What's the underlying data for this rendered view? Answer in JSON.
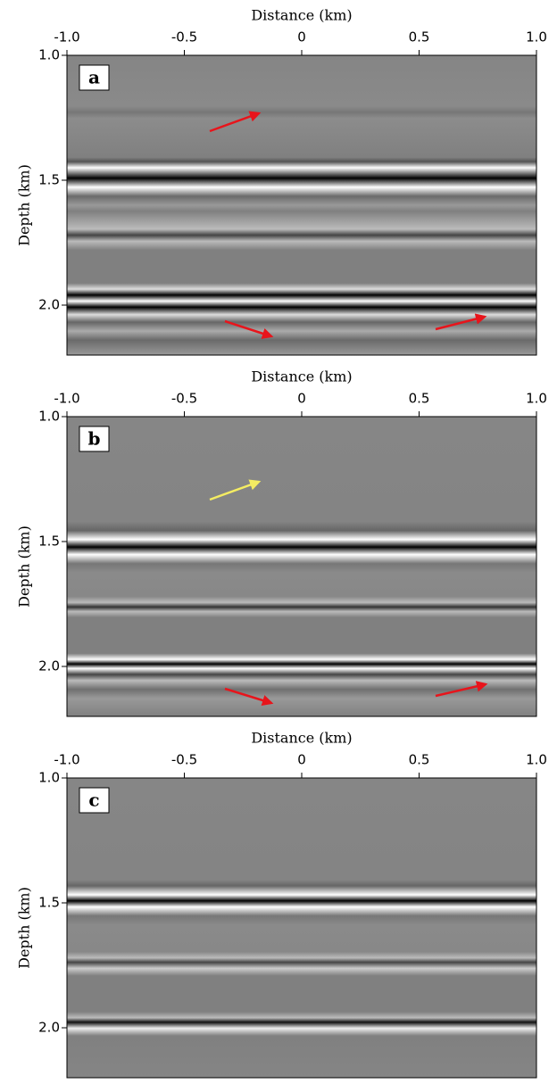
{
  "chart_data": [
    {
      "type": "image",
      "label": "a",
      "xlabel": "Distance (km)",
      "ylabel": "Depth (km)",
      "xlim": [
        -1.0,
        1.0
      ],
      "xticks": [
        {
          "value": -1.0,
          "label": "-1.0"
        },
        {
          "value": -0.5,
          "label": "-0.5"
        },
        0,
        0.5,
        {
          "value": 1.0,
          "label": "1.0"
        }
      ],
      "ylim": [
        1.0,
        2.2
      ],
      "yticks": [
        {
          "value": 1.0,
          "label": "1.0"
        },
        1.5,
        {
          "value": 2.0,
          "label": "2.0"
        }
      ]
    },
    {
      "type": "image",
      "label": "b",
      "xlabel": "Distance (km)",
      "ylabel": "Depth (km)",
      "xlim": [
        -1.0,
        1.0
      ],
      "xticks": [
        {
          "value": -1.0,
          "label": "-1.0"
        },
        {
          "value": -0.5,
          "label": "-0.5"
        },
        0,
        0.5,
        {
          "value": 1.0,
          "label": "1.0"
        }
      ],
      "ylim": [
        1.0,
        2.2
      ],
      "yticks": [
        {
          "value": 1.0,
          "label": "1.0"
        },
        1.5,
        {
          "value": 2.0,
          "label": "2.0"
        }
      ]
    },
    {
      "type": "image",
      "label": "c",
      "xlabel": "Distance (km)",
      "ylabel": "Depth (km)",
      "xlim": [
        -1.0,
        1.0
      ],
      "xticks": [
        {
          "value": -1.0,
          "label": "-1.0"
        },
        {
          "value": -0.5,
          "label": "-0.5"
        },
        0,
        0.5,
        {
          "value": 1.0,
          "label": "1.0"
        }
      ],
      "ylim": [
        1.0,
        2.2
      ],
      "yticks": [
        {
          "value": 1.0,
          "label": "1.0"
        },
        1.5,
        {
          "value": 2.0,
          "label": "2.0"
        }
      ]
    }
  ]
}
